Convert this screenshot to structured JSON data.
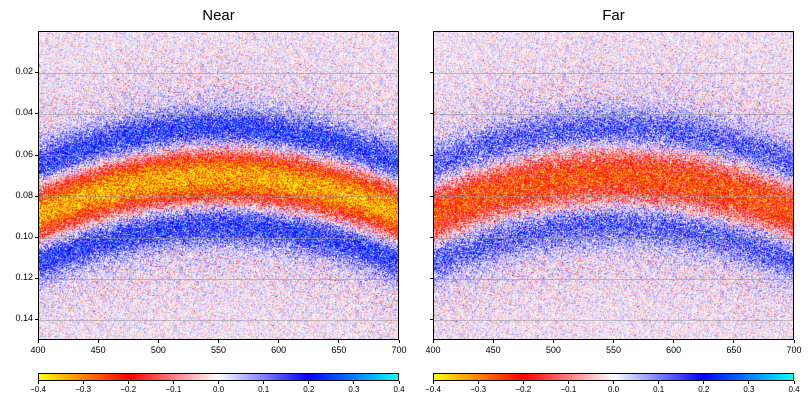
{
  "chart_data": [
    {
      "type": "heatmap",
      "title": "Near",
      "xlabel": "",
      "ylabel": "",
      "xlim": [
        400,
        700
      ],
      "ylim": [
        0.15,
        0.0
      ],
      "x_ticks": [
        "400",
        "450",
        "500",
        "550",
        "600",
        "650",
        "700"
      ],
      "y_ticks": [
        "0.02",
        "0.04",
        "0.06",
        "0.08",
        "0.10",
        "0.12",
        "0.14"
      ],
      "grid": "horizontal",
      "peak_amplitude": -0.35,
      "side_lobe_amplitude": 0.2,
      "curve_apex": {
        "x": 550,
        "y": 0.07
      },
      "curve_edge": {
        "x": 400,
        "y": 0.088
      },
      "colorbar": {
        "range": [
          -0.4,
          0.4
        ],
        "ticks": [
          "−0.4",
          "−0.3",
          "−0.2",
          "−0.1",
          "0.0",
          "0.1",
          "0.2",
          "0.3",
          "0.4"
        ],
        "colormap": [
          "#ffff00",
          "#ff0000",
          "#ffffff",
          "#0000ff",
          "#00ffff"
        ]
      }
    },
    {
      "type": "heatmap",
      "title": "Far",
      "xlabel": "",
      "ylabel": "",
      "xlim": [
        400,
        700
      ],
      "ylim": [
        0.15,
        0.0
      ],
      "x_ticks": [
        "400",
        "450",
        "500",
        "550",
        "600",
        "650",
        "700"
      ],
      "y_ticks": [],
      "grid": "horizontal",
      "peak_amplitude": -0.24,
      "side_lobe_amplitude": 0.15,
      "curve_apex": {
        "x": 550,
        "y": 0.07
      },
      "curve_edge": {
        "x": 400,
        "y": 0.088
      },
      "colorbar": {
        "range": [
          -0.4,
          0.4
        ],
        "ticks": [
          "−0.4",
          "−0.3",
          "−0.2",
          "−0.1",
          "0.0",
          "0.1",
          "0.2",
          "0.3",
          "0.4"
        ],
        "colormap": [
          "#ffff00",
          "#ff0000",
          "#ffffff",
          "#0000ff",
          "#00ffff"
        ]
      }
    }
  ]
}
